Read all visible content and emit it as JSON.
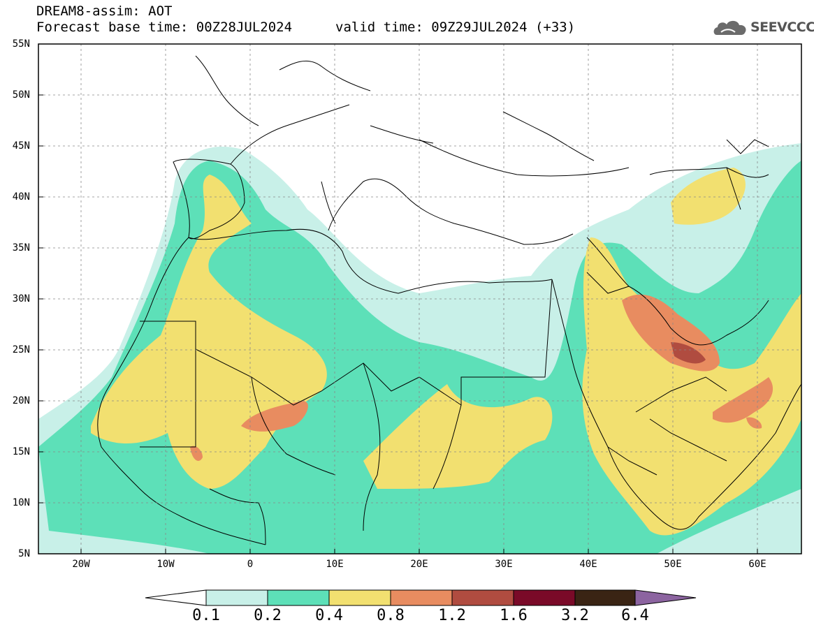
{
  "header": {
    "title": "DREAM8-assim: AOT",
    "base_time": "Forecast base time: 00Z28JUL2024",
    "valid_time": "valid time: 09Z29JUL2024 (+33)",
    "logo_text": "SEEVCCC",
    "logo_icon": "cloud-icon"
  },
  "axes": {
    "lat_labels": [
      "55N",
      "50N",
      "45N",
      "40N",
      "35N",
      "30N",
      "25N",
      "20N",
      "15N",
      "10N",
      "5N"
    ],
    "lon_labels": [
      "20W",
      "10W",
      "0",
      "10E",
      "20E",
      "30E",
      "40E",
      "50E",
      "60E"
    ]
  },
  "colorbar": {
    "labels": [
      "0.1",
      "0.2",
      "0.4",
      "0.8",
      "1.2",
      "1.6",
      "3.2",
      "6.4"
    ],
    "colors": [
      "#c8f0e8",
      "#5de0b8",
      "#f2e070",
      "#e88c60",
      "#b04c40",
      "#7a0a28",
      "#3a2414",
      "#8c64a0"
    ]
  },
  "colors": {
    "c01": "#c8f0e8",
    "c02": "#5de0b8",
    "c04": "#f2e070",
    "c08": "#e88c60",
    "c12": "#b04c40",
    "c16": "#7a0a28",
    "c32": "#3a2414",
    "c64": "#8c64a0"
  }
}
